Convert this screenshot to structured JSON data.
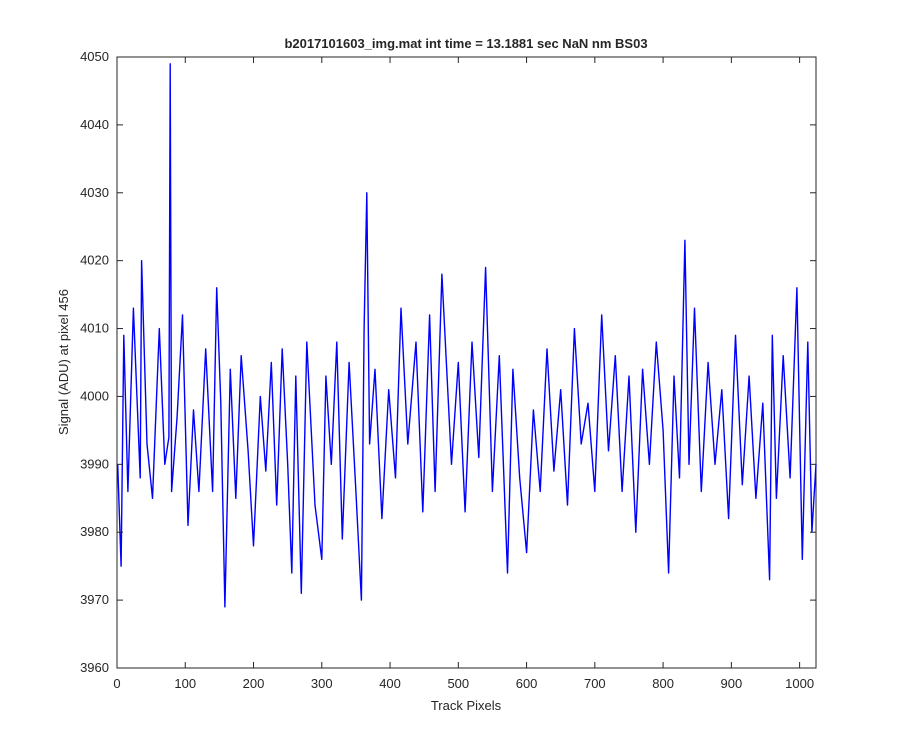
{
  "chart_data": {
    "type": "line",
    "title": "b2017101603_img.mat int time = 13.1881 sec  NaN nm BS03",
    "xlabel": "Track Pixels",
    "ylabel": "Signal (ADU) at pixel 456",
    "xlim": [
      0,
      1024
    ],
    "ylim": [
      3960,
      4050
    ],
    "xticks": [
      0,
      100,
      200,
      300,
      400,
      500,
      600,
      700,
      800,
      900,
      1000
    ],
    "yticks": [
      3960,
      3970,
      3980,
      3990,
      4000,
      4010,
      4020,
      4030,
      4040,
      4050
    ],
    "grid": false,
    "legend": "none",
    "series": [
      {
        "color": "#0000ff",
        "x": [
          1,
          6,
          10,
          16,
          24,
          34,
          36,
          44,
          52,
          62,
          70,
          76,
          78,
          80,
          88,
          96,
          104,
          112,
          120,
          130,
          140,
          146,
          152,
          158,
          166,
          174,
          182,
          192,
          200,
          210,
          218,
          226,
          234,
          242,
          250,
          256,
          262,
          270,
          278,
          290,
          300,
          306,
          314,
          322,
          330,
          340,
          350,
          358,
          362,
          366,
          370,
          378,
          388,
          398,
          408,
          416,
          426,
          438,
          448,
          458,
          466,
          476,
          490,
          500,
          510,
          520,
          530,
          540,
          550,
          560,
          572,
          580,
          590,
          600,
          610,
          620,
          630,
          640,
          650,
          660,
          670,
          680,
          690,
          700,
          710,
          720,
          730,
          740,
          750,
          760,
          770,
          780,
          790,
          800,
          808,
          816,
          824,
          832,
          838,
          846,
          856,
          866,
          876,
          886,
          896,
          906,
          916,
          926,
          936,
          946,
          956,
          960,
          966,
          976,
          986,
          996,
          1004,
          1012,
          1018,
          1024
        ],
        "values": [
          3990,
          3975,
          4009,
          3986,
          4013,
          3988,
          4020,
          3993,
          3985,
          4010,
          3990,
          3994,
          4049,
          3986,
          3997,
          4012,
          3981,
          3998,
          3986,
          4007,
          3986,
          4016,
          3999,
          3969,
          4004,
          3985,
          4006,
          3992,
          3978,
          4000,
          3989,
          4005,
          3984,
          4007,
          3990,
          3974,
          4003,
          3971,
          4008,
          3984,
          3976,
          4003,
          3990,
          4008,
          3979,
          4005,
          3986,
          3970,
          4010,
          4030,
          3993,
          4004,
          3982,
          4001,
          3988,
          4013,
          3993,
          4008,
          3983,
          4012,
          3986,
          4018,
          3990,
          4005,
          3983,
          4008,
          3991,
          4019,
          3986,
          4006,
          3974,
          4004,
          3988,
          3977,
          3998,
          3986,
          4007,
          3989,
          4001,
          3984,
          4010,
          3993,
          3999,
          3986,
          4012,
          3992,
          4006,
          3986,
          4003,
          3980,
          4004,
          3990,
          4008,
          3995,
          3974,
          4003,
          3988,
          4023,
          3990,
          4013,
          3986,
          4005,
          3990,
          4001,
          3982,
          4009,
          3987,
          4003,
          3985,
          3999,
          3973,
          4009,
          3985,
          4006,
          3988,
          4016,
          3976,
          4008,
          3980,
          3990
        ]
      }
    ]
  }
}
